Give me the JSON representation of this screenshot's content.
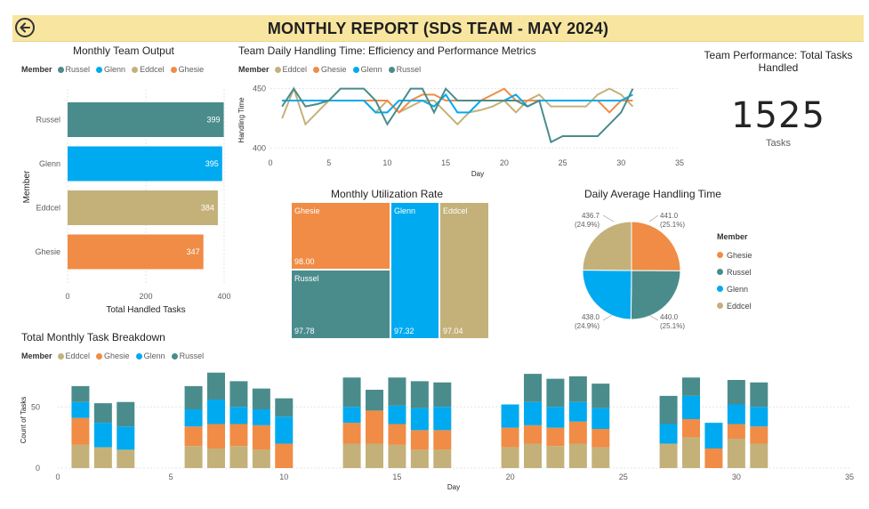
{
  "header": {
    "title": "MONTHLY REPORT (SDS TEAM - MAY 2024)",
    "back_icon": "back-arrow-icon"
  },
  "colors": {
    "Russel": "#4a8c8c",
    "Glenn": "#00aaf0",
    "Eddcel": "#c4b17a",
    "Ghesie": "#f08c46"
  },
  "team_output": {
    "title": "Monthly Team Output",
    "legend_title": "Member",
    "legend": [
      "Russel",
      "Glenn",
      "Eddcel",
      "Ghesie"
    ],
    "xlabel": "Total Handled Tasks",
    "ylabel": "Member",
    "x_ticks": [
      "0",
      "200",
      "400"
    ]
  },
  "handling_time": {
    "title": "Team Daily Handling Time: Efficiency and Performance Metrics",
    "legend_title": "Member",
    "legend": [
      "Eddcel",
      "Ghesie",
      "Glenn",
      "Russel"
    ],
    "xlabel": "Day",
    "ylabel": "Handling Time",
    "x_ticks": [
      "0",
      "5",
      "10",
      "15",
      "20",
      "25",
      "30",
      "35"
    ],
    "y_ticks": [
      "400",
      "450"
    ]
  },
  "kpi": {
    "title": "Team Performance: Total Tasks Handled",
    "value": "1525",
    "label": "Tasks"
  },
  "utilization": {
    "title": "Monthly Utilization Rate",
    "cells": [
      {
        "name": "Ghesie",
        "value": "98.00"
      },
      {
        "name": "Russel",
        "value": "97.78"
      },
      {
        "name": "Glenn",
        "value": "97.32"
      },
      {
        "name": "Eddcel",
        "value": "97.04"
      }
    ]
  },
  "avg_handling": {
    "title": "Daily Average Handling Time",
    "legend_title": "Member",
    "legend": [
      "Ghesie",
      "Russel",
      "Glenn",
      "Eddcel"
    ],
    "labels": [
      {
        "value": "441.0",
        "pct": "(25.1%)"
      },
      {
        "value": "440.0",
        "pct": "(25.1%)"
      },
      {
        "value": "438.0",
        "pct": "(24.9%)"
      },
      {
        "value": "436.7",
        "pct": "(24.9%)"
      }
    ]
  },
  "breakdown": {
    "title": "Total Monthly Task Breakdown",
    "legend_title": "Member",
    "legend": [
      "Eddcel",
      "Ghesie",
      "Glenn",
      "Russel"
    ],
    "xlabel": "Day",
    "ylabel": "Count of Tasks",
    "x_ticks": [
      "0",
      "5",
      "10",
      "15",
      "20",
      "25",
      "30",
      "35"
    ],
    "y_ticks": [
      "0",
      "50"
    ]
  },
  "chart_data": [
    {
      "type": "bar",
      "orientation": "horizontal",
      "title": "Monthly Team Output",
      "categories": [
        "Russel",
        "Glenn",
        "Eddcel",
        "Ghesie"
      ],
      "values": [
        399,
        395,
        384,
        347
      ],
      "xlabel": "Total Handled Tasks",
      "ylabel": "Member",
      "xlim": [
        0,
        400
      ]
    },
    {
      "type": "line",
      "title": "Team Daily Handling Time: Efficiency and Performance Metrics",
      "xlabel": "Day",
      "ylabel": "Handling Time",
      "xlim": [
        0,
        35
      ],
      "ylim": [
        395,
        455
      ],
      "x": [
        1,
        2,
        3,
        4,
        5,
        6,
        7,
        8,
        9,
        10,
        11,
        12,
        13,
        14,
        15,
        16,
        17,
        18,
        19,
        20,
        21,
        22,
        23,
        24,
        25,
        26,
        27,
        28,
        29,
        30,
        31
      ],
      "series": [
        {
          "name": "Eddcel",
          "values": [
            425,
            450,
            420,
            430,
            440,
            440,
            440,
            440,
            430,
            440,
            430,
            435,
            440,
            440,
            430,
            420,
            430,
            432,
            435,
            440,
            430,
            440,
            445,
            435,
            435,
            435,
            435,
            445,
            450,
            445,
            435
          ]
        },
        {
          "name": "Ghesie",
          "values": [
            440,
            440,
            440,
            440,
            440,
            440,
            440,
            440,
            440,
            440,
            430,
            440,
            445,
            445,
            440,
            440,
            440,
            440,
            445,
            450,
            440,
            440,
            440,
            440,
            440,
            440,
            440,
            440,
            430,
            440,
            440
          ]
        },
        {
          "name": "Glenn",
          "values": [
            440,
            440,
            440,
            440,
            440,
            440,
            440,
            440,
            430,
            430,
            440,
            440,
            440,
            435,
            445,
            430,
            430,
            440,
            440,
            440,
            445,
            435,
            440,
            440,
            440,
            440,
            440,
            440,
            440,
            440,
            445
          ]
        },
        {
          "name": "Russel",
          "values": [
            435,
            450,
            435,
            437,
            440,
            450,
            450,
            450,
            440,
            420,
            435,
            450,
            450,
            430,
            450,
            440,
            440,
            440,
            440,
            440,
            440,
            435,
            440,
            405,
            410,
            410,
            410,
            410,
            420,
            430,
            450
          ]
        }
      ]
    },
    {
      "type": "table",
      "title": "Team Performance: Total Tasks Handled",
      "value": 1525,
      "unit": "Tasks"
    },
    {
      "type": "heatmap",
      "subtype": "treemap",
      "title": "Monthly Utilization Rate",
      "categories": [
        "Ghesie",
        "Russel",
        "Glenn",
        "Eddcel"
      ],
      "values": [
        98.0,
        97.78,
        97.32,
        97.04
      ]
    },
    {
      "type": "pie",
      "title": "Daily Average Handling Time",
      "categories": [
        "Ghesie",
        "Russel",
        "Glenn",
        "Eddcel"
      ],
      "values": [
        441.0,
        440.0,
        438.0,
        436.7
      ],
      "percent": [
        25.1,
        25.1,
        24.9,
        24.9
      ]
    },
    {
      "type": "bar",
      "stacked": true,
      "title": "Total Monthly Task Breakdown",
      "xlabel": "Day",
      "ylabel": "Count of Tasks",
      "xlim": [
        0,
        35
      ],
      "ylim": [
        0,
        80
      ],
      "x": [
        1,
        2,
        3,
        6,
        7,
        8,
        9,
        10,
        13,
        14,
        15,
        16,
        17,
        20,
        21,
        22,
        23,
        24,
        27,
        28,
        29,
        30,
        31
      ],
      "series": [
        {
          "name": "Eddcel",
          "values": [
            19,
            17,
            15,
            18,
            16,
            18,
            15,
            0,
            20,
            20,
            19,
            15,
            15,
            17,
            20,
            18,
            20,
            17,
            20,
            25,
            0,
            24,
            20
          ]
        },
        {
          "name": "Ghesie",
          "values": [
            22,
            0,
            0,
            16,
            20,
            18,
            20,
            20,
            17,
            27,
            17,
            16,
            16,
            16,
            15,
            15,
            18,
            15,
            0,
            15,
            16,
            12,
            14
          ]
        },
        {
          "name": "Glenn",
          "values": [
            13,
            20,
            19,
            14,
            20,
            14,
            13,
            22,
            13,
            0,
            15,
            18,
            19,
            19,
            19,
            17,
            16,
            17,
            16,
            19,
            21,
            16,
            16
          ]
        },
        {
          "name": "Russel",
          "values": [
            13,
            16,
            20,
            19,
            22,
            21,
            17,
            15,
            24,
            17,
            23,
            22,
            20,
            0,
            23,
            23,
            21,
            20,
            23,
            15,
            0,
            20,
            20
          ]
        }
      ]
    }
  ]
}
